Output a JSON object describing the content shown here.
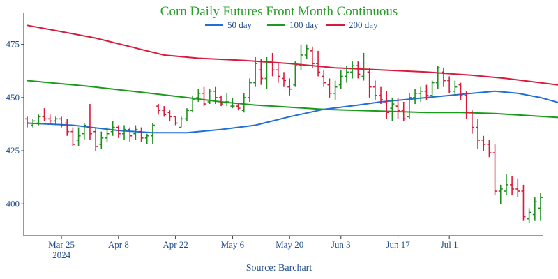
{
  "chart_data": {
    "type": "line",
    "title": "Corn Daily Futures Front Month Continuous",
    "source": "Source: Barchart",
    "legend_position": "top",
    "grid": false,
    "ylim": [
      385,
      490
    ],
    "y_ticks": [
      400,
      425,
      450,
      475
    ],
    "x_ticks": [
      {
        "index": 6,
        "label": "Mar 25",
        "sublabel": "2024"
      },
      {
        "index": 16,
        "label": "Apr 8",
        "sublabel": ""
      },
      {
        "index": 26,
        "label": "Apr 22",
        "sublabel": ""
      },
      {
        "index": 36,
        "label": "May 6",
        "sublabel": ""
      },
      {
        "index": 46,
        "label": "May 20",
        "sublabel": ""
      },
      {
        "index": 55,
        "label": "Jun 3",
        "sublabel": ""
      },
      {
        "index": 65,
        "label": "Jun 17",
        "sublabel": ""
      },
      {
        "index": 74,
        "label": "Jul 1",
        "sublabel": ""
      }
    ],
    "colors": {
      "title": "#2a9d2a",
      "up": "#1e8f1e",
      "down": "#d81b3c",
      "ma50": "#1f6fd6",
      "ma100": "#1c9a1c",
      "ma200": "#d81b3c",
      "axis": "#333333",
      "text": "#1f4e8c"
    },
    "ohlc": [
      [
        440,
        441,
        436,
        438
      ],
      [
        437,
        440,
        436,
        439
      ],
      [
        438,
        442,
        437,
        441
      ],
      [
        441,
        445,
        439,
        440
      ],
      [
        440,
        442,
        438,
        439
      ],
      [
        439,
        441,
        437,
        440
      ],
      [
        440,
        441,
        436,
        437
      ],
      [
        438,
        440,
        432,
        434
      ],
      [
        434,
        436,
        427,
        428
      ],
      [
        430,
        436,
        427,
        432
      ],
      [
        433,
        438,
        430,
        437
      ],
      [
        436,
        447,
        430,
        433
      ],
      [
        434,
        436,
        425,
        427
      ],
      [
        428,
        434,
        426,
        431
      ],
      [
        431,
        436,
        429,
        433
      ],
      [
        434,
        439,
        432,
        436
      ],
      [
        436,
        437,
        431,
        433
      ],
      [
        433,
        437,
        430,
        435
      ],
      [
        435,
        436,
        429,
        432
      ],
      [
        433,
        437,
        430,
        435
      ],
      [
        434,
        436,
        429,
        431
      ],
      [
        431,
        433,
        428,
        432
      ],
      [
        432,
        438,
        428,
        437
      ],
      [
        446,
        447,
        442,
        444
      ],
      [
        444,
        446,
        441,
        442
      ],
      [
        443,
        444,
        439,
        441
      ],
      [
        441,
        441,
        437,
        438
      ],
      [
        436,
        441,
        436,
        440
      ],
      [
        440,
        445,
        439,
        444
      ],
      [
        444,
        451,
        443,
        449
      ],
      [
        450,
        454,
        448,
        452
      ],
      [
        452,
        455,
        446,
        447
      ],
      [
        448,
        454,
        447,
        453
      ],
      [
        453,
        455,
        447,
        450
      ],
      [
        450,
        451,
        446,
        447
      ],
      [
        448,
        452,
        446,
        448
      ],
      [
        446,
        450,
        445,
        446
      ],
      [
        446,
        447,
        444,
        445
      ],
      [
        444,
        452,
        443,
        450
      ],
      [
        450,
        459,
        448,
        457
      ],
      [
        457,
        469,
        455,
        466
      ],
      [
        463,
        468,
        456,
        459
      ],
      [
        459,
        469,
        454,
        467
      ],
      [
        467,
        471,
        460,
        463
      ],
      [
        463,
        466,
        457,
        460
      ],
      [
        459,
        462,
        455,
        458
      ],
      [
        455,
        459,
        451,
        454
      ],
      [
        456,
        467,
        455,
        465
      ],
      [
        465,
        475,
        463,
        470
      ],
      [
        470,
        475,
        468,
        473
      ],
      [
        472,
        474,
        464,
        466
      ],
      [
        466,
        472,
        460,
        462
      ],
      [
        460,
        463,
        455,
        457
      ],
      [
        456,
        459,
        450,
        452
      ],
      [
        452,
        458,
        449,
        455
      ],
      [
        456,
        463,
        454,
        460
      ],
      [
        460,
        465,
        457,
        462
      ],
      [
        462,
        467,
        459,
        465
      ],
      [
        465,
        467,
        459,
        461
      ],
      [
        460,
        471,
        458,
        463
      ],
      [
        462,
        464,
        450,
        455
      ],
      [
        455,
        458,
        449,
        451
      ],
      [
        451,
        455,
        447,
        449
      ],
      [
        448,
        453,
        440,
        443
      ],
      [
        445,
        450,
        439,
        447
      ],
      [
        446,
        450,
        440,
        444
      ],
      [
        444,
        448,
        439,
        440
      ],
      [
        441,
        452,
        440,
        450
      ],
      [
        450,
        454,
        447,
        452
      ],
      [
        452,
        455,
        448,
        453
      ],
      [
        453,
        456,
        449,
        451
      ],
      [
        451,
        458,
        450,
        457
      ],
      [
        457,
        465,
        454,
        464
      ],
      [
        462,
        464,
        455,
        458
      ],
      [
        458,
        460,
        452,
        453
      ],
      [
        453,
        458,
        451,
        455
      ],
      [
        456,
        457,
        449,
        451
      ],
      [
        451,
        453,
        440,
        443
      ],
      [
        443,
        444,
        433,
        436
      ],
      [
        436,
        440,
        426,
        430
      ],
      [
        430,
        432,
        425,
        428
      ],
      [
        428,
        430,
        422,
        424
      ],
      [
        424,
        428,
        404,
        406
      ],
      [
        406,
        409,
        400,
        407
      ],
      [
        406,
        414,
        404,
        409
      ],
      [
        409,
        413,
        404,
        407
      ],
      [
        407,
        412,
        403,
        406
      ],
      [
        406,
        409,
        392,
        394
      ],
      [
        393,
        398,
        391,
        396
      ],
      [
        395,
        403,
        392,
        401
      ],
      [
        398,
        405,
        392,
        403
      ]
    ],
    "series": [
      {
        "name": "50 day",
        "key": "ma50",
        "values": [
          [
            0,
            438
          ],
          [
            8,
            437
          ],
          [
            16,
            434.5
          ],
          [
            22,
            433.5
          ],
          [
            28,
            433.5
          ],
          [
            34,
            435
          ],
          [
            40,
            437
          ],
          [
            46,
            441
          ],
          [
            52,
            444.5
          ],
          [
            58,
            446.5
          ],
          [
            62,
            448
          ],
          [
            66,
            449
          ],
          [
            70,
            450
          ],
          [
            74,
            451
          ],
          [
            78,
            452
          ],
          [
            82,
            453
          ],
          [
            86,
            452
          ],
          [
            90,
            450
          ],
          [
            94,
            447
          ],
          [
            98,
            443
          ]
        ]
      },
      {
        "name": "100 day",
        "key": "ma100",
        "values": [
          [
            0,
            458
          ],
          [
            10,
            455.5
          ],
          [
            20,
            452.5
          ],
          [
            28,
            450
          ],
          [
            34,
            448
          ],
          [
            40,
            446.5
          ],
          [
            46,
            445.5
          ],
          [
            52,
            444.5
          ],
          [
            58,
            444
          ],
          [
            64,
            443.5
          ],
          [
            70,
            443
          ],
          [
            76,
            443
          ],
          [
            82,
            442.5
          ],
          [
            88,
            441.5
          ],
          [
            94,
            440.5
          ],
          [
            98,
            440
          ]
        ]
      },
      {
        "name": "200 day",
        "key": "ma200",
        "values": [
          [
            0,
            484
          ],
          [
            6,
            481
          ],
          [
            12,
            478
          ],
          [
            18,
            474
          ],
          [
            24,
            470
          ],
          [
            30,
            468.5
          ],
          [
            38,
            467.5
          ],
          [
            46,
            466
          ],
          [
            54,
            464
          ],
          [
            62,
            463
          ],
          [
            70,
            462
          ],
          [
            78,
            460.5
          ],
          [
            84,
            459
          ],
          [
            90,
            457
          ],
          [
            96,
            455
          ]
        ]
      }
    ]
  }
}
